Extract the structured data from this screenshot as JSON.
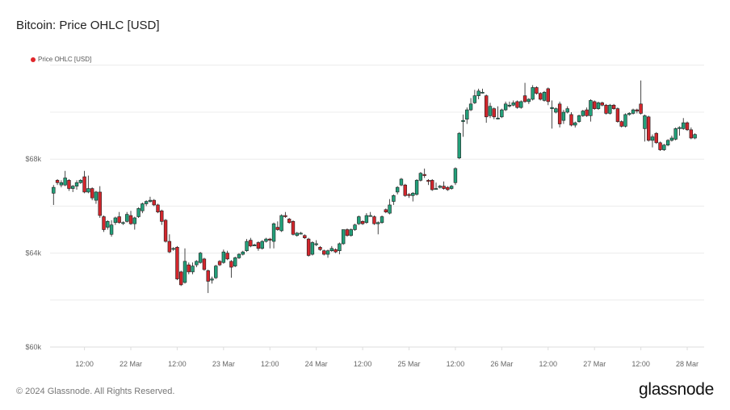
{
  "title": "Bitcoin: Price OHLC [USD]",
  "legend": {
    "label": "Price OHLC [USD]",
    "color": "#e0262b"
  },
  "footer": "© 2024 Glassnode. All Rights Reserved.",
  "logo": "glassnode",
  "colors": {
    "up": "#22a07a",
    "down": "#d3262c",
    "outline": "#1e1e1e",
    "grid": "#ececec"
  },
  "chart_data": {
    "type": "candlestick",
    "interval": "1h",
    "x_start": "21 Mar 04:00",
    "ylim": [
      60000,
      72000
    ],
    "y_ticks": [
      {
        "value": 60,
        "label": "$60k"
      },
      {
        "value": 64,
        "label": "$64k"
      },
      {
        "value": 68,
        "label": "$68k"
      }
    ],
    "y_unit": "thousand USD",
    "grid": true,
    "x_ticks": [
      "12:00",
      "22 Mar",
      "12:00",
      "23 Mar",
      "12:00",
      "24 Mar",
      "12:00",
      "25 Mar",
      "12:00",
      "26 Mar",
      "12:00",
      "27 Mar",
      "12:00",
      "28 Mar"
    ],
    "ohlc_fields": [
      "open",
      "high",
      "low",
      "close"
    ],
    "ohlc": [
      [
        66.55,
        66.9,
        66.05,
        66.8
      ],
      [
        67.1,
        67.15,
        66.9,
        67.0
      ],
      [
        66.9,
        67.1,
        66.8,
        67.0
      ],
      [
        66.9,
        67.5,
        66.85,
        67.2
      ],
      [
        67.1,
        67.15,
        66.65,
        66.75
      ],
      [
        66.75,
        66.9,
        66.6,
        66.85
      ],
      [
        66.85,
        67.1,
        66.7,
        67.0
      ],
      [
        67.0,
        67.15,
        66.95,
        67.1
      ],
      [
        67.25,
        67.5,
        66.55,
        66.6
      ],
      [
        66.6,
        67.3,
        66.55,
        66.75
      ],
      [
        66.75,
        66.8,
        66.25,
        66.35
      ],
      [
        66.25,
        66.65,
        66.1,
        66.6
      ],
      [
        66.6,
        66.85,
        65.5,
        65.6
      ],
      [
        65.55,
        65.6,
        64.9,
        65.0
      ],
      [
        65.1,
        65.4,
        65.0,
        65.35
      ],
      [
        64.8,
        65.4,
        64.7,
        65.2
      ],
      [
        65.3,
        65.55,
        65.2,
        65.5
      ],
      [
        65.55,
        65.75,
        65.25,
        65.3
      ],
      [
        65.3,
        65.35,
        65.2,
        65.3
      ],
      [
        65.35,
        65.75,
        65.3,
        65.65
      ],
      [
        65.6,
        65.8,
        65.2,
        65.25
      ],
      [
        65.25,
        65.55,
        65.0,
        65.5
      ],
      [
        65.55,
        65.95,
        65.5,
        65.9
      ],
      [
        65.8,
        66.15,
        65.7,
        66.1
      ],
      [
        66.1,
        66.25,
        66.0,
        66.2
      ],
      [
        66.2,
        66.4,
        66.15,
        66.25
      ],
      [
        66.25,
        66.3,
        66.0,
        66.05
      ],
      [
        66.05,
        66.1,
        65.7,
        65.75
      ],
      [
        65.8,
        65.85,
        65.2,
        65.35
      ],
      [
        65.4,
        65.45,
        64.45,
        64.5
      ],
      [
        64.5,
        64.8,
        64.0,
        64.05
      ],
      [
        64.2,
        64.25,
        64.1,
        64.2
      ],
      [
        64.25,
        64.3,
        62.85,
        62.9
      ],
      [
        63.2,
        63.25,
        62.6,
        62.65
      ],
      [
        62.75,
        64.2,
        62.7,
        63.65
      ],
      [
        63.5,
        63.6,
        63.1,
        63.2
      ],
      [
        63.2,
        63.6,
        63.1,
        63.45
      ],
      [
        63.5,
        63.7,
        63.4,
        63.65
      ],
      [
        63.6,
        64.05,
        63.55,
        64.0
      ],
      [
        63.75,
        63.8,
        63.25,
        63.3
      ],
      [
        63.25,
        63.3,
        62.3,
        62.8
      ],
      [
        62.85,
        63.0,
        62.7,
        62.9
      ],
      [
        62.95,
        63.5,
        62.9,
        63.45
      ],
      [
        63.65,
        63.7,
        63.45,
        63.5
      ],
      [
        63.6,
        64.15,
        63.55,
        64.05
      ],
      [
        64.0,
        64.1,
        63.7,
        63.75
      ],
      [
        63.65,
        63.7,
        62.95,
        63.4
      ],
      [
        63.45,
        63.85,
        63.4,
        63.8
      ],
      [
        63.8,
        64.0,
        63.75,
        63.95
      ],
      [
        63.95,
        64.1,
        63.9,
        64.05
      ],
      [
        64.1,
        64.6,
        64.05,
        64.5
      ],
      [
        64.55,
        64.65,
        64.25,
        64.3
      ],
      [
        64.35,
        64.4,
        64.3,
        64.35
      ],
      [
        64.45,
        64.5,
        64.1,
        64.2
      ],
      [
        64.2,
        64.55,
        64.15,
        64.5
      ],
      [
        64.5,
        64.65,
        64.45,
        64.6
      ],
      [
        64.6,
        64.65,
        64.2,
        64.55
      ],
      [
        64.5,
        65.3,
        64.2,
        65.25
      ],
      [
        65.1,
        65.35,
        64.95,
        65.0
      ],
      [
        64.95,
        65.65,
        64.9,
        65.6
      ],
      [
        65.6,
        65.75,
        65.5,
        65.55
      ],
      [
        65.45,
        65.5,
        65.25,
        65.3
      ],
      [
        65.35,
        65.4,
        64.75,
        64.8
      ],
      [
        64.75,
        64.9,
        64.7,
        64.85
      ],
      [
        64.85,
        64.9,
        64.8,
        64.85
      ],
      [
        64.75,
        64.8,
        64.6,
        64.65
      ],
      [
        64.6,
        64.65,
        63.85,
        63.9
      ],
      [
        63.95,
        64.5,
        63.9,
        64.45
      ],
      [
        64.4,
        64.55,
        64.3,
        64.4
      ],
      [
        64.25,
        64.3,
        64.1,
        64.15
      ],
      [
        64.1,
        64.15,
        63.9,
        63.95
      ],
      [
        63.95,
        64.15,
        63.8,
        64.1
      ],
      [
        64.1,
        64.3,
        64.05,
        64.2
      ],
      [
        64.15,
        64.2,
        64.0,
        64.05
      ],
      [
        64.1,
        64.45,
        63.95,
        64.4
      ],
      [
        64.4,
        65.0,
        64.35,
        65.0
      ],
      [
        65.0,
        65.05,
        64.7,
        64.75
      ],
      [
        64.75,
        65.05,
        64.7,
        65.0
      ],
      [
        65.0,
        65.25,
        64.95,
        65.2
      ],
      [
        65.25,
        65.6,
        65.2,
        65.55
      ],
      [
        65.35,
        65.4,
        65.2,
        65.25
      ],
      [
        65.3,
        65.7,
        65.25,
        65.6
      ],
      [
        65.6,
        65.75,
        65.55,
        65.6
      ],
      [
        65.55,
        65.6,
        65.2,
        65.25
      ],
      [
        65.25,
        65.35,
        64.8,
        65.3
      ],
      [
        65.3,
        65.6,
        65.25,
        65.55
      ],
      [
        65.85,
        65.9,
        65.7,
        65.75
      ],
      [
        65.7,
        66.3,
        65.65,
        66.05
      ],
      [
        66.2,
        66.5,
        66.05,
        66.45
      ],
      [
        66.6,
        66.85,
        66.5,
        66.8
      ],
      [
        66.9,
        67.2,
        66.85,
        67.15
      ],
      [
        66.9,
        66.95,
        66.4,
        66.45
      ],
      [
        66.5,
        66.55,
        66.35,
        66.45
      ],
      [
        66.45,
        66.6,
        66.2,
        66.55
      ],
      [
        66.5,
        67.15,
        66.45,
        67.1
      ],
      [
        67.1,
        67.45,
        67.05,
        67.4
      ],
      [
        67.35,
        67.6,
        67.2,
        67.3
      ],
      [
        67.1,
        67.15,
        66.9,
        67.05
      ],
      [
        67.1,
        67.15,
        66.65,
        66.7
      ],
      [
        66.75,
        67.0,
        66.7,
        66.75
      ],
      [
        66.8,
        66.9,
        66.75,
        66.85
      ],
      [
        66.85,
        67.05,
        66.7,
        66.75
      ],
      [
        66.8,
        66.85,
        66.65,
        66.7
      ],
      [
        66.75,
        66.9,
        66.7,
        66.85
      ],
      [
        67.0,
        67.65,
        66.9,
        67.6
      ],
      [
        68.05,
        69.15,
        68.0,
        69.1
      ],
      [
        69.6,
        69.9,
        68.95,
        69.65
      ],
      [
        69.7,
        70.2,
        69.5,
        70.1
      ],
      [
        70.1,
        70.6,
        70.05,
        70.35
      ],
      [
        70.4,
        70.95,
        70.35,
        70.7
      ],
      [
        70.7,
        71.0,
        70.55,
        70.9
      ],
      [
        70.85,
        71.0,
        70.8,
        70.85
      ],
      [
        70.7,
        70.75,
        69.55,
        69.8
      ],
      [
        69.85,
        70.4,
        69.75,
        70.25
      ],
      [
        70.15,
        70.2,
        69.7,
        69.8
      ],
      [
        69.75,
        70.25,
        69.7,
        69.75
      ],
      [
        69.8,
        70.15,
        69.75,
        70.1
      ],
      [
        70.1,
        70.45,
        70.05,
        70.35
      ],
      [
        70.3,
        70.45,
        70.2,
        70.3
      ],
      [
        70.3,
        70.5,
        70.25,
        70.4
      ],
      [
        70.45,
        70.5,
        70.15,
        70.2
      ],
      [
        70.2,
        70.5,
        70.15,
        70.45
      ],
      [
        70.7,
        71.25,
        70.4,
        70.45
      ],
      [
        70.45,
        70.6,
        70.35,
        70.55
      ],
      [
        70.55,
        71.15,
        70.5,
        71.05
      ],
      [
        71.05,
        71.1,
        70.75,
        70.8
      ],
      [
        70.8,
        70.85,
        70.5,
        70.55
      ],
      [
        70.5,
        70.9,
        70.45,
        70.85
      ],
      [
        71.0,
        71.05,
        70.3,
        70.45
      ],
      [
        70.15,
        70.5,
        69.3,
        70.2
      ],
      [
        70.0,
        70.2,
        69.95,
        70.15
      ],
      [
        70.35,
        70.45,
        69.35,
        69.5
      ],
      [
        69.65,
        70.1,
        69.5,
        70.0
      ],
      [
        70.0,
        70.25,
        69.95,
        70.15
      ],
      [
        69.9,
        70.0,
        69.4,
        69.45
      ],
      [
        69.45,
        69.6,
        69.35,
        69.55
      ],
      [
        69.6,
        69.9,
        69.55,
        69.85
      ],
      [
        69.85,
        70.1,
        69.8,
        70.05
      ],
      [
        70.1,
        70.2,
        69.8,
        69.85
      ],
      [
        69.85,
        70.55,
        69.6,
        70.5
      ],
      [
        70.45,
        70.5,
        70.1,
        70.15
      ],
      [
        70.15,
        70.45,
        70.1,
        70.4
      ],
      [
        70.4,
        70.45,
        70.25,
        70.3
      ],
      [
        70.3,
        70.35,
        69.9,
        69.95
      ],
      [
        69.95,
        70.35,
        69.9,
        70.3
      ],
      [
        70.3,
        70.35,
        70.1,
        70.15
      ],
      [
        70.15,
        70.2,
        69.55,
        69.6
      ],
      [
        69.6,
        69.65,
        69.35,
        69.4
      ],
      [
        69.4,
        69.95,
        69.35,
        69.9
      ],
      [
        69.9,
        70.0,
        69.85,
        69.95
      ],
      [
        69.95,
        70.15,
        69.9,
        70.1
      ],
      [
        70.1,
        70.15,
        69.95,
        70.05
      ],
      [
        70.35,
        71.35,
        69.9,
        69.95
      ],
      [
        69.3,
        69.9,
        68.75,
        69.85
      ],
      [
        69.8,
        69.85,
        68.75,
        68.8
      ],
      [
        68.8,
        69.05,
        68.5,
        68.95
      ],
      [
        69.1,
        69.15,
        68.65,
        68.7
      ],
      [
        68.7,
        68.75,
        68.35,
        68.4
      ],
      [
        68.4,
        68.65,
        68.35,
        68.6
      ],
      [
        68.6,
        68.85,
        68.55,
        68.8
      ],
      [
        68.8,
        69.0,
        68.75,
        68.9
      ],
      [
        68.85,
        69.35,
        68.8,
        69.3
      ],
      [
        69.3,
        69.4,
        69.0,
        69.35
      ],
      [
        69.3,
        69.75,
        69.25,
        69.55
      ],
      [
        69.55,
        69.6,
        69.2,
        69.25
      ],
      [
        69.25,
        69.35,
        68.85,
        68.9
      ],
      [
        68.9,
        69.1,
        68.85,
        69.05
      ]
    ]
  }
}
